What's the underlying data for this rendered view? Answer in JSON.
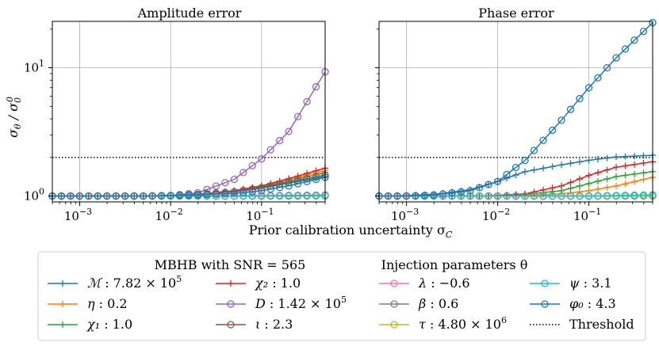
{
  "chart_data": [
    {
      "type": "line",
      "title": "Amplitude error",
      "xlabel": "Prior calibration uncertainty σ_C",
      "ylabel": "σ_θ / σ_θ^0",
      "xscale": "log",
      "yscale": "log",
      "xlim": [
        0.0005,
        0.5
      ],
      "ylim": [
        0.9,
        23
      ],
      "x_ticks": [
        {
          "value": 0.001,
          "base": "10",
          "exp": "−3"
        },
        {
          "value": 0.01,
          "base": "10",
          "exp": "−2"
        },
        {
          "value": 0.1,
          "base": "10",
          "exp": "−1"
        }
      ],
      "y_ticks": [
        {
          "value": 1,
          "base": "10",
          "exp": "0"
        },
        {
          "value": 10,
          "base": "10",
          "exp": "1"
        }
      ],
      "grid": true,
      "threshold": 2,
      "x": [
        0.0005,
        0.001,
        0.002,
        0.005,
        0.01,
        0.02,
        0.05,
        0.1,
        0.2,
        0.5
      ],
      "series": [
        {
          "name": "M",
          "values": [
            1.0,
            1.0,
            1.0,
            1.0,
            1.01,
            1.03,
            1.08,
            1.15,
            1.26,
            1.42
          ]
        },
        {
          "name": "eta",
          "values": [
            1.0,
            1.0,
            1.0,
            1.0,
            1.01,
            1.03,
            1.1,
            1.2,
            1.35,
            1.58
          ]
        },
        {
          "name": "chi1",
          "values": [
            1.0,
            1.0,
            1.0,
            1.0,
            1.01,
            1.03,
            1.09,
            1.18,
            1.31,
            1.52
          ]
        },
        {
          "name": "chi2",
          "values": [
            1.0,
            1.0,
            1.0,
            1.0,
            1.01,
            1.03,
            1.1,
            1.2,
            1.37,
            1.65
          ]
        },
        {
          "name": "D",
          "values": [
            1.0,
            1.0,
            1.0,
            1.0,
            1.01,
            1.06,
            1.35,
            1.95,
            3.2,
            9.3
          ]
        },
        {
          "name": "iota",
          "values": [
            1.0,
            1.0,
            1.0,
            1.0,
            1.01,
            1.03,
            1.08,
            1.16,
            1.28,
            1.46
          ]
        },
        {
          "name": "lambda",
          "values": [
            1.0,
            1.0,
            1.0,
            1.0,
            1.0,
            1.0,
            1.0,
            1.01,
            1.01,
            1.02
          ]
        },
        {
          "name": "beta",
          "values": [
            1.0,
            1.0,
            1.0,
            1.0,
            1.0,
            1.0,
            1.0,
            1.0,
            1.01,
            1.01
          ]
        },
        {
          "name": "tau",
          "values": [
            1.0,
            1.0,
            1.0,
            1.0,
            1.0,
            1.0,
            1.0,
            1.0,
            1.0,
            1.0
          ]
        },
        {
          "name": "psi",
          "values": [
            1.0,
            1.0,
            1.0,
            1.0,
            1.0,
            1.0,
            1.0,
            1.0,
            1.0,
            1.01
          ]
        },
        {
          "name": "phi0",
          "values": [
            1.0,
            1.0,
            1.0,
            1.0,
            1.01,
            1.02,
            1.05,
            1.1,
            1.2,
            1.4
          ]
        }
      ]
    },
    {
      "type": "line",
      "title": "Phase error",
      "xlabel": "Prior calibration uncertainty σ_C",
      "ylabel": "",
      "xscale": "log",
      "yscale": "log",
      "xlim": [
        0.0005,
        0.5
      ],
      "ylim": [
        0.9,
        23
      ],
      "x_ticks": [
        {
          "value": 0.001,
          "base": "10",
          "exp": "−3"
        },
        {
          "value": 0.01,
          "base": "10",
          "exp": "−2"
        },
        {
          "value": 0.1,
          "base": "10",
          "exp": "−1"
        }
      ],
      "y_ticks": [],
      "grid": true,
      "threshold": 2,
      "x": [
        0.0005,
        0.001,
        0.002,
        0.005,
        0.01,
        0.02,
        0.05,
        0.1,
        0.2,
        0.5
      ],
      "series": [
        {
          "name": "M",
          "values": [
            1.0,
            1.01,
            1.03,
            1.12,
            1.3,
            1.55,
            1.75,
            1.9,
            2.02,
            2.08
          ]
        },
        {
          "name": "eta",
          "values": [
            1.0,
            1.0,
            1.0,
            1.0,
            1.0,
            1.01,
            1.04,
            1.1,
            1.2,
            1.4
          ]
        },
        {
          "name": "chi1",
          "values": [
            1.0,
            1.0,
            1.0,
            1.0,
            1.01,
            1.03,
            1.1,
            1.25,
            1.42,
            1.55
          ]
        },
        {
          "name": "chi2",
          "values": [
            1.0,
            1.0,
            1.0,
            1.0,
            1.01,
            1.04,
            1.2,
            1.45,
            1.68,
            1.85
          ]
        },
        {
          "name": "D",
          "values": [
            1.0,
            1.0,
            1.0,
            1.0,
            1.0,
            1.0,
            1.0,
            1.0,
            1.0,
            1.0
          ]
        },
        {
          "name": "iota",
          "values": [
            1.0,
            1.0,
            1.0,
            1.0,
            1.0,
            1.0,
            1.0,
            1.0,
            1.0,
            1.0
          ]
        },
        {
          "name": "lambda",
          "values": [
            1.0,
            1.0,
            1.0,
            1.0,
            1.0,
            1.0,
            1.0,
            1.0,
            1.0,
            1.01
          ]
        },
        {
          "name": "beta",
          "values": [
            1.0,
            1.0,
            1.0,
            1.0,
            1.0,
            1.0,
            1.0,
            1.0,
            1.0,
            1.0
          ]
        },
        {
          "name": "tau",
          "values": [
            1.0,
            1.0,
            1.0,
            1.0,
            1.0,
            1.0,
            1.0,
            1.0,
            1.0,
            1.0
          ]
        },
        {
          "name": "psi",
          "values": [
            1.0,
            1.0,
            1.0,
            1.0,
            1.0,
            1.0,
            1.0,
            1.0,
            1.01,
            1.02
          ]
        },
        {
          "name": "phi0",
          "values": [
            1.0,
            1.0,
            1.02,
            1.1,
            1.3,
            1.9,
            3.9,
            7.0,
            12.0,
            22.5
          ]
        }
      ]
    }
  ],
  "styles": {
    "M": {
      "color": "#1f77b4",
      "marker": "plus"
    },
    "eta": {
      "color": "#ff7f0e",
      "marker": "plus"
    },
    "chi1": {
      "color": "#2ca02c",
      "marker": "plus"
    },
    "chi2": {
      "color": "#d62728",
      "marker": "plus"
    },
    "D": {
      "color": "#9467bd",
      "marker": "circle"
    },
    "iota": {
      "color": "#8c564b",
      "marker": "circle"
    },
    "lambda": {
      "color": "#e377c2",
      "marker": "circle"
    },
    "beta": {
      "color": "#7f7f7f",
      "marker": "circle"
    },
    "tau": {
      "color": "#bcbd22",
      "marker": "circle"
    },
    "psi": {
      "color": "#17becf",
      "marker": "circle"
    },
    "phi0": {
      "color": "#1f77b4",
      "marker": "circle"
    },
    "threshold": {
      "color": "#000000"
    },
    "grid": "#b0b0b0"
  },
  "legend": {
    "title_left": "MBHB with SNR = 565",
    "title_right": "Injection parameters θ",
    "entries": [
      {
        "key": "M",
        "symbol": "ℳ",
        "value": "7.82 × 10",
        "exp": "5"
      },
      {
        "key": "eta",
        "symbol": "η",
        "value": "0.2",
        "exp": ""
      },
      {
        "key": "chi1",
        "symbol": "χ₁",
        "value": "1.0",
        "exp": ""
      },
      {
        "key": "chi2",
        "symbol": "χ₂",
        "value": "1.0",
        "exp": ""
      },
      {
        "key": "D",
        "symbol": "D",
        "value": "1.42 × 10",
        "exp": "5"
      },
      {
        "key": "iota",
        "symbol": "ι",
        "value": "2.3",
        "exp": ""
      },
      {
        "key": "lambda",
        "symbol": "λ",
        "value": "−0.6",
        "exp": ""
      },
      {
        "key": "beta",
        "symbol": "β",
        "value": "0.6",
        "exp": ""
      },
      {
        "key": "tau",
        "symbol": "τ",
        "value": "4.80 × 10",
        "exp": "6"
      },
      {
        "key": "psi",
        "symbol": "ψ",
        "value": "3.1",
        "exp": ""
      },
      {
        "key": "phi0",
        "symbol": "φ₀",
        "value": "4.3",
        "exp": ""
      },
      {
        "key": "threshold",
        "symbol": "",
        "value": "Threshold",
        "exp": ""
      }
    ]
  },
  "ylabel_parts": {
    "sigma": "σ",
    "sub": "θ",
    "slash": " / σ",
    "sup0": "0"
  },
  "xlabel_parts": {
    "text": "Prior calibration uncertainty σ",
    "sub": "C"
  }
}
